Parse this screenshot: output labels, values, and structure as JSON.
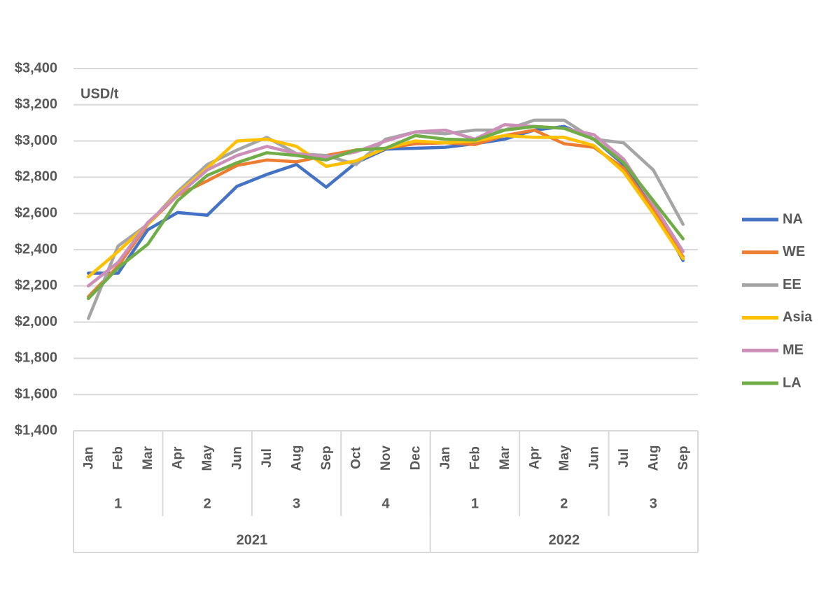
{
  "chart_data": {
    "type": "line",
    "unit_label": "USD/t",
    "categories": [
      "Jan",
      "Feb",
      "Mar",
      "Apr",
      "May",
      "Jun",
      "Jul",
      "Aug",
      "Sep",
      "Oct",
      "Nov",
      "Dec",
      "Jan",
      "Feb",
      "Mar",
      "Apr",
      "May",
      "Jun",
      "Jul",
      "Aug",
      "Sep"
    ],
    "quarters": [
      {
        "label": "1",
        "months": 3
      },
      {
        "label": "2",
        "months": 3
      },
      {
        "label": "3",
        "months": 3
      },
      {
        "label": "4",
        "months": 3
      },
      {
        "label": "1",
        "months": 3
      },
      {
        "label": "2",
        "months": 3
      },
      {
        "label": "3",
        "months": 3
      }
    ],
    "years": [
      {
        "label": "2021",
        "months": 12
      },
      {
        "label": "2022",
        "months": 9
      }
    ],
    "series": [
      {
        "name": "NA",
        "color": "#4472c4",
        "values": [
          2270,
          2270,
          2510,
          2605,
          2590,
          2750,
          2815,
          2870,
          2745,
          2880,
          2955,
          2960,
          2965,
          2985,
          3010,
          3060,
          3080,
          3010,
          2870,
          2640,
          2340
        ]
      },
      {
        "name": "WE",
        "color": "#ed7d31",
        "values": [
          2140,
          2310,
          2540,
          2700,
          2780,
          2865,
          2895,
          2885,
          2920,
          2950,
          2960,
          2985,
          2990,
          2980,
          3030,
          3060,
          2985,
          2965,
          2850,
          2620,
          2360
        ]
      },
      {
        "name": "EE",
        "color": "#a5a5a5",
        "values": [
          2020,
          2420,
          2540,
          2720,
          2870,
          2950,
          3020,
          2930,
          2920,
          2870,
          3010,
          3050,
          3040,
          3060,
          3060,
          3115,
          3115,
          3010,
          2990,
          2840,
          2540
        ]
      },
      {
        "name": "Asia",
        "color": "#ffc000",
        "values": [
          2250,
          2390,
          2540,
          2710,
          2850,
          3000,
          3010,
          2970,
          2860,
          2890,
          2960,
          3000,
          2990,
          3000,
          3030,
          3020,
          3020,
          2975,
          2830,
          2600,
          2350
        ]
      },
      {
        "name": "ME",
        "color": "#cc8fb8",
        "values": [
          2200,
          2330,
          2550,
          2700,
          2840,
          2920,
          2970,
          2930,
          2910,
          2940,
          3000,
          3050,
          3060,
          3010,
          3090,
          3080,
          3070,
          3035,
          2900,
          2650,
          2390
        ]
      },
      {
        "name": "LA",
        "color": "#70ad47",
        "values": [
          2130,
          2300,
          2430,
          2670,
          2810,
          2880,
          2935,
          2920,
          2895,
          2950,
          2960,
          3030,
          3010,
          3005,
          3060,
          3080,
          3070,
          3010,
          2880,
          2670,
          2460
        ]
      }
    ],
    "ylim": [
      1400,
      3400
    ],
    "yticks": [
      {
        "value": 1400,
        "label": "$1,400"
      },
      {
        "value": 1600,
        "label": "$1,600"
      },
      {
        "value": 1800,
        "label": "$1,800"
      },
      {
        "value": 2000,
        "label": "$2,000"
      },
      {
        "value": 2200,
        "label": "$2,200"
      },
      {
        "value": 2400,
        "label": "$2,400"
      },
      {
        "value": 2600,
        "label": "$2,600"
      },
      {
        "value": 2800,
        "label": "$2,800"
      },
      {
        "value": 3000,
        "label": "$3,000"
      },
      {
        "value": 3200,
        "label": "$3,200"
      },
      {
        "value": 3400,
        "label": "$3,400"
      }
    ],
    "grid": true,
    "legend": "right"
  }
}
